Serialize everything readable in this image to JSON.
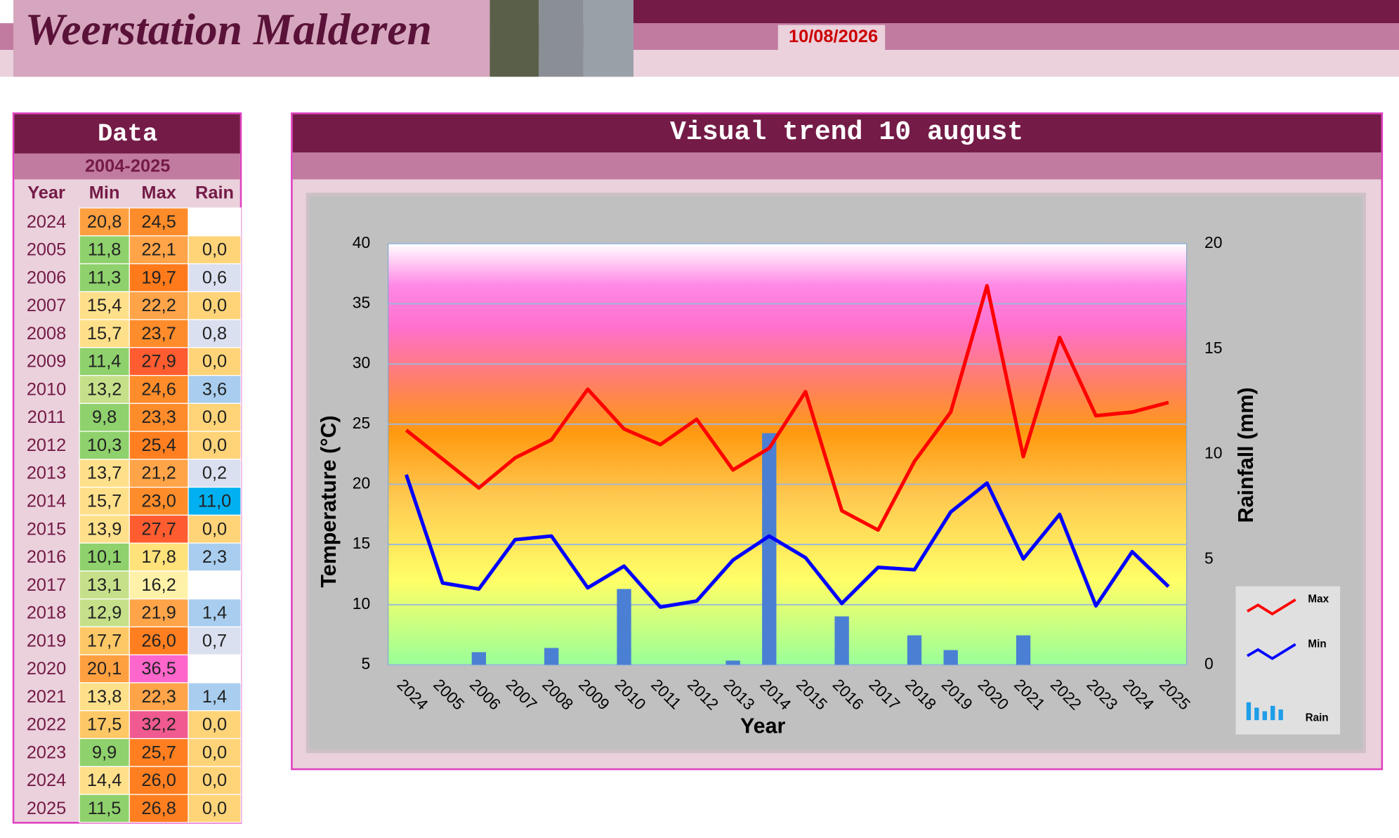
{
  "header": {
    "title": "Weerstation Malderen",
    "date": "10/08/2026"
  },
  "table": {
    "title": "Data",
    "subtitle": "2004-2025",
    "columns": [
      "Year",
      "Min",
      "Max",
      "Rain"
    ],
    "rows": [
      [
        "2024",
        "20,8",
        "24,5",
        ""
      ],
      [
        "2005",
        "11,8",
        "22,1",
        "0,0"
      ],
      [
        "2006",
        "11,3",
        "19,7",
        "0,6"
      ],
      [
        "2007",
        "15,4",
        "22,2",
        "0,0"
      ],
      [
        "2008",
        "15,7",
        "23,7",
        "0,8"
      ],
      [
        "2009",
        "11,4",
        "27,9",
        "0,0"
      ],
      [
        "2010",
        "13,2",
        "24,6",
        "3,6"
      ],
      [
        "2011",
        "9,8",
        "23,3",
        "0,0"
      ],
      [
        "2012",
        "10,3",
        "25,4",
        "0,0"
      ],
      [
        "2013",
        "13,7",
        "21,2",
        "0,2"
      ],
      [
        "2014",
        "15,7",
        "23,0",
        "11,0"
      ],
      [
        "2015",
        "13,9",
        "27,7",
        "0,0"
      ],
      [
        "2016",
        "10,1",
        "17,8",
        "2,3"
      ],
      [
        "2017",
        "13,1",
        "16,2",
        ""
      ],
      [
        "2018",
        "12,9",
        "21,9",
        "1,4"
      ],
      [
        "2019",
        "17,7",
        "26,0",
        "0,7"
      ],
      [
        "2020",
        "20,1",
        "36,5",
        ""
      ],
      [
        "2021",
        "13,8",
        "22,3",
        "1,4"
      ],
      [
        "2022",
        "17,5",
        "32,2",
        "0,0"
      ],
      [
        "2023",
        "9,9",
        "25,7",
        "0,0"
      ],
      [
        "2024",
        "14,4",
        "26,0",
        "0,0"
      ],
      [
        "2025",
        "11,5",
        "26,8",
        "0,0"
      ]
    ]
  },
  "chart_data": {
    "type": "line",
    "title": "Visual trend 10 august",
    "x_label": "Year",
    "y_label": "Temperature (°C)",
    "y2_label": "Rainfall (mm)",
    "categories": [
      "2024",
      "2005",
      "2006",
      "2007",
      "2008",
      "2009",
      "2010",
      "2011",
      "2012",
      "2013",
      "2014",
      "2015",
      "2016",
      "2017",
      "2018",
      "2019",
      "2020",
      "2021",
      "2022",
      "2023",
      "2024",
      "2025"
    ],
    "series": [
      {
        "name": "Max",
        "type": "line",
        "color": "#ff0000",
        "values": [
          24.5,
          22.1,
          19.7,
          22.2,
          23.7,
          27.9,
          24.6,
          23.3,
          25.4,
          21.2,
          23.0,
          27.7,
          17.8,
          16.2,
          21.9,
          26.0,
          36.5,
          22.3,
          32.2,
          25.7,
          26.0,
          26.8
        ]
      },
      {
        "name": "Min",
        "type": "line",
        "color": "#0000ff",
        "values": [
          20.8,
          11.8,
          11.3,
          15.4,
          15.7,
          11.4,
          13.2,
          9.8,
          10.3,
          13.7,
          15.7,
          13.9,
          10.1,
          13.1,
          12.9,
          17.7,
          20.1,
          13.8,
          17.5,
          9.9,
          14.4,
          11.5
        ]
      },
      {
        "name": "Rain",
        "type": "bar",
        "axis": "y2",
        "color": "#4a7fd4",
        "values": [
          null,
          0.0,
          0.6,
          0.0,
          0.8,
          0.0,
          3.6,
          0.0,
          0.0,
          0.2,
          11.0,
          0.0,
          2.3,
          null,
          1.4,
          0.7,
          null,
          1.4,
          0.0,
          0.0,
          0.0,
          0.0
        ]
      }
    ],
    "ylim": [
      5,
      40
    ],
    "yticks": [
      5,
      10,
      15,
      20,
      25,
      30,
      35,
      40
    ],
    "y2lim": [
      0,
      20
    ],
    "y2ticks": [
      0,
      5,
      10,
      15,
      20
    ],
    "grid": true
  }
}
